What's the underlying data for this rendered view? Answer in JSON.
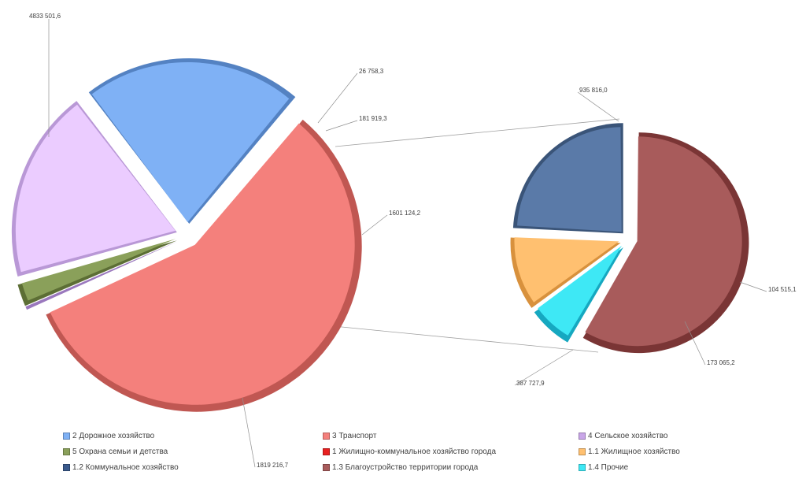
{
  "chart_data": {
    "type": "pie",
    "subtype": "bar-of-pie",
    "main_pie": [
      {
        "name": "3 Транспорт",
        "value": 4833501.6,
        "label": "4833 501,6",
        "color": "#f4807c",
        "dark": "#c05752"
      },
      {
        "name": "4 Сельское хозяйство",
        "value": 26758.3,
        "label": "26 758,3",
        "color": "#c9a6e8",
        "dark": "#9a78bd"
      },
      {
        "name": "5 Охрана семьи и детства",
        "value": 181919.3,
        "label": "181 919,3",
        "color": "#8aa05a",
        "dark": "#5c6e35"
      },
      {
        "name": "1 Жилищно-коммунальное  хозяйство города",
        "value": 1601124.2,
        "label": "1601 124,2",
        "color": "#ebccff",
        "dark": "#b998d6"
      },
      {
        "name": "2 Дорожное хозяйство",
        "value": 1819216.7,
        "label": "1819 216,7",
        "color": "#7fb1f5",
        "dark": "#5482c2"
      }
    ],
    "secondary_pie": [
      {
        "name": "1.3 Благоустройство территории города",
        "value": 935816.0,
        "label": "935 816,0",
        "color": "#a85b5b",
        "dark": "#7a3535"
      },
      {
        "name": "1.4 Прочие",
        "value": 104515.1,
        "label": "104 515,1",
        "color": "#3ee8f5",
        "dark": "#16a8c0"
      },
      {
        "name": "1.1 Жилищное хозяйство",
        "value": 173065.2,
        "label": "173 065,2",
        "color": "#ffc070",
        "dark": "#d8913d"
      },
      {
        "name": "1.2 Коммунальное хозяйство",
        "value": 387727.9,
        "label": "387 727,9",
        "color": "#5a7aa8",
        "dark": "#3a5478"
      }
    ],
    "legend_placement": "bottom",
    "legend": [
      {
        "label": "2 Дорожное хозяйство",
        "color": "#7fb1f5"
      },
      {
        "label": "3 Транспорт",
        "color": "#f4807c"
      },
      {
        "label": "4 Сельское хозяйство",
        "color": "#c9a6e8"
      },
      {
        "label": "5 Охрана семьи и детства",
        "color": "#8aa05a"
      },
      {
        "label": "1 Жилищно-коммунальное  хозяйство города",
        "color": "#e82020"
      },
      {
        "label": "1.1 Жилищное хозяйство",
        "color": "#ffc070"
      },
      {
        "label": "1.2 Коммунальное хозяйство",
        "color": "#3a5a8c"
      },
      {
        "label": "1.3 Благоустройство территории города",
        "color": "#a85b5b"
      },
      {
        "label": "1.4 Прочие",
        "color": "#3ee8f5"
      }
    ]
  }
}
